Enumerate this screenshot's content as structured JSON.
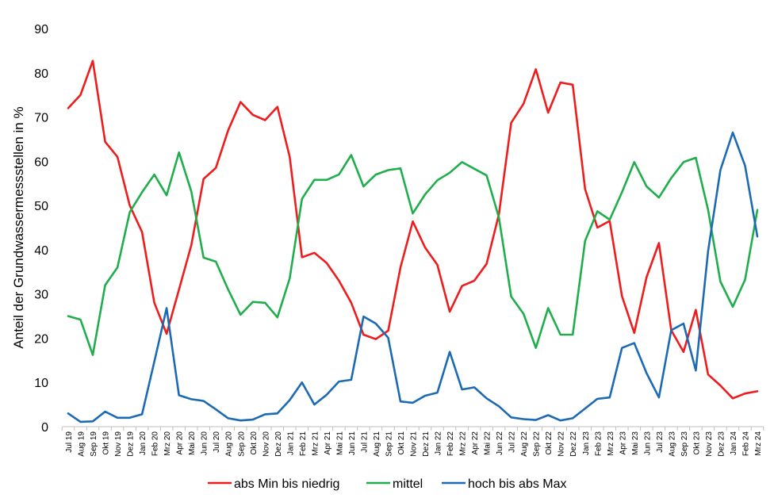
{
  "chart_data": {
    "type": "line",
    "ylabel": "Anteil der Grundwassermessstellen  in %",
    "xlabel": "",
    "ylim": [
      0,
      90
    ],
    "yticks": [
      0,
      10,
      20,
      30,
      40,
      50,
      60,
      70,
      80,
      90
    ],
    "grid": false,
    "legend": "bottom",
    "categories": [
      "Jul 19",
      "Aug 19",
      "Sep 19",
      "Okt 19",
      "Nov 19",
      "Dez 19",
      "Jan 20",
      "Feb 20",
      "Mrz 20",
      "Apr 20",
      "Mai 20",
      "Jun 20",
      "Jul 20",
      "Aug 20",
      "Sep 20",
      "Okt 20",
      "Nov 20",
      "Dez 20",
      "Jan 21",
      "Feb 21",
      "Mrz 21",
      "Apr 21",
      "Mai 21",
      "Jun 21",
      "Jul 21",
      "Aug 21",
      "Sep 21",
      "Okt 21",
      "Nov 21",
      "Dez 21",
      "Jan 22",
      "Feb 22",
      "Mrz 22",
      "Apr 22",
      "Mai 22",
      "Jun 22",
      "Jul 22",
      "Aug 22",
      "Sep 22",
      "Okt 22",
      "Nov 22",
      "Dez 22",
      "Jan 23",
      "Feb 23",
      "Mrz 23",
      "Apr 23",
      "Mai 23",
      "Jun 23",
      "Jul 23",
      "Aug 23",
      "Sep 23",
      "Okt 23",
      "Nov 23",
      "Dez 23",
      "Jan 24",
      "Feb 24",
      "Mrz 24"
    ],
    "series": [
      {
        "name": "abs Min bis niedrig",
        "color": "#ee1c1c",
        "values": [
          72,
          75,
          82.7,
          64.4,
          61,
          50,
          44,
          28,
          21,
          31,
          41,
          56,
          58.5,
          67,
          73.4,
          70.5,
          69.3,
          72.3,
          61,
          38.3,
          39.3,
          37,
          33,
          28,
          20.8,
          19.8,
          21.7,
          36,
          46.4,
          40.5,
          36.6,
          26,
          31.8,
          33,
          36.8,
          48,
          68.7,
          73,
          80.8,
          71,
          77.8,
          77.3,
          53.7,
          45,
          46.5,
          29.5,
          21.2,
          33.8,
          41.5,
          21.8,
          16.9,
          26.4,
          11.8,
          9.3,
          6.4,
          7.5,
          8
        ]
      },
      {
        "name": "mittel",
        "color": "#1fae4b",
        "values": [
          25,
          24.2,
          16.2,
          32,
          36,
          48.5,
          53,
          57,
          52.3,
          62,
          53.2,
          38.2,
          37.3,
          31,
          25.3,
          28.2,
          28,
          24.7,
          33.5,
          51.5,
          55.8,
          55.8,
          57,
          61.4,
          54.3,
          57,
          58,
          58.4,
          48.2,
          52.5,
          55.7,
          57.4,
          59.8,
          58.3,
          56.8,
          47.3,
          29.4,
          25.5,
          17.8,
          26.8,
          20.8,
          20.8,
          42,
          48.7,
          46.8,
          53,
          59.8,
          54.3,
          51.8,
          56.2,
          59.8,
          60.8,
          49,
          32.8,
          27.1,
          33.2,
          49
        ]
      },
      {
        "name": "hoch bis abs Max",
        "color": "#1c6ab3",
        "values": [
          3,
          1.1,
          1.2,
          3.4,
          2,
          2,
          2.8,
          14.7,
          26.8,
          7.1,
          6.2,
          5.8,
          3.9,
          1.9,
          1.4,
          1.6,
          2.8,
          3,
          6,
          10,
          5,
          7.2,
          10.2,
          10.6,
          24.9,
          23.3,
          20.1,
          5.7,
          5.4,
          7,
          7.7,
          16.9,
          8.4,
          8.9,
          6.4,
          4.6,
          2.1,
          1.7,
          1.5,
          2.6,
          1.4,
          1.9,
          4.1,
          6.3,
          6.6,
          17.8,
          18.9,
          12.1,
          6.6,
          21.8,
          23.3,
          12.7,
          39.7,
          58,
          66.5,
          59,
          43
        ]
      }
    ]
  }
}
